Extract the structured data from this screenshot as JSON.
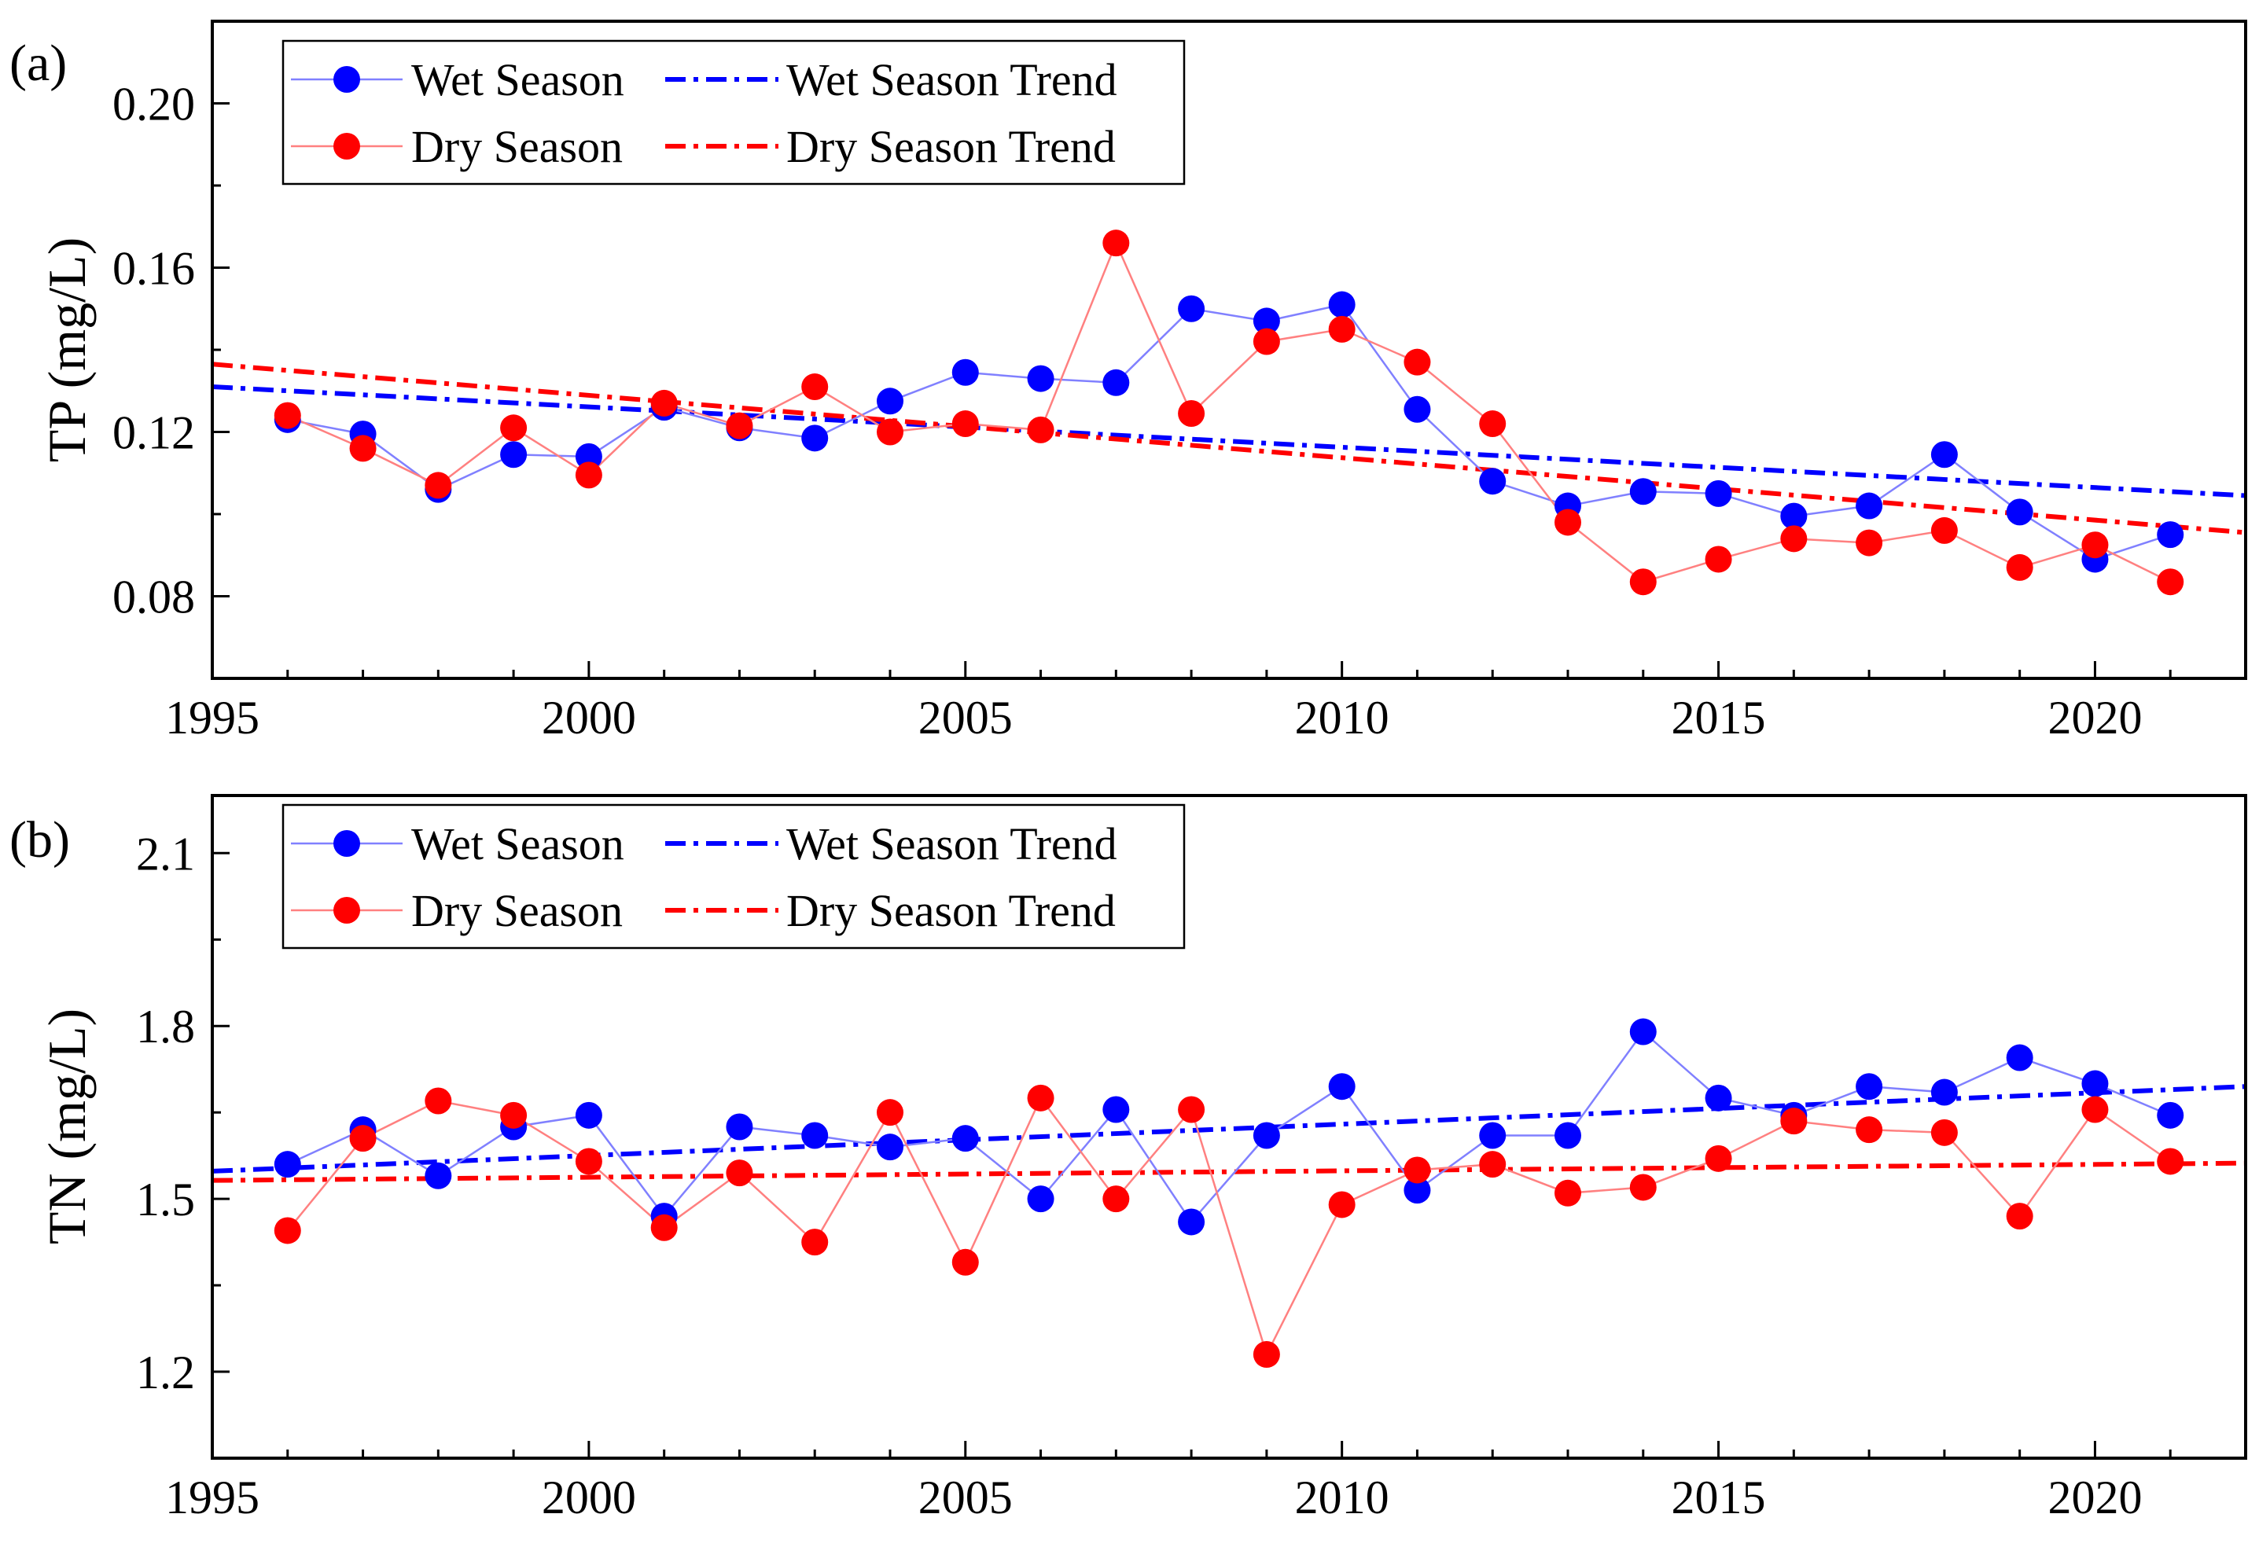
{
  "colors": {
    "wet": "#0000ff",
    "dry": "#ff0000",
    "wet_line": "#8080ff",
    "dry_line": "#ff8080",
    "axes": "#000000"
  },
  "chart_data": [
    {
      "type": "line",
      "panel_label": "(a)",
      "ylabel": "TP (mg/L)",
      "xlim": [
        1995,
        2022
      ],
      "ylim": [
        0.06,
        0.22
      ],
      "xticks": [
        1995,
        2000,
        2005,
        2010,
        2015,
        2020
      ],
      "yticks": [
        0.08,
        0.12,
        0.16,
        0.2
      ],
      "xtick_labels": [
        "1995",
        "2000",
        "2005",
        "2010",
        "2015",
        "2020"
      ],
      "ytick_labels": [
        "0.08",
        "0.12",
        "0.16",
        "0.20"
      ],
      "legend_position": "top-left",
      "x": [
        1996,
        1997,
        1998,
        1999,
        2000,
        2001,
        2002,
        2003,
        2004,
        2005,
        2006,
        2007,
        2008,
        2009,
        2010,
        2011,
        2012,
        2013,
        2014,
        2015,
        2016,
        2017,
        2018,
        2019,
        2020,
        2021
      ],
      "series": [
        {
          "name": "Wet Season",
          "key": "wet",
          "values": [
            0.123,
            0.1195,
            0.106,
            0.1145,
            0.114,
            0.126,
            0.121,
            0.1185,
            0.1275,
            0.1345,
            0.133,
            0.132,
            0.15,
            0.147,
            0.151,
            0.1255,
            0.108,
            0.102,
            0.1055,
            0.105,
            0.0995,
            0.102,
            0.1145,
            0.1005,
            0.089,
            0.095
          ]
        },
        {
          "name": "Dry Season",
          "key": "dry",
          "values": [
            0.124,
            0.116,
            0.107,
            0.121,
            0.1095,
            0.127,
            0.1215,
            0.131,
            0.12,
            0.122,
            0.1205,
            0.166,
            0.1245,
            0.142,
            0.145,
            0.137,
            0.122,
            0.098,
            0.0835,
            0.089,
            0.094,
            0.093,
            0.096,
            0.087,
            0.0925,
            0.0835
          ]
        }
      ],
      "trends": [
        {
          "name": "Wet Season Trend",
          "key": "wet",
          "x": [
            1995,
            2022
          ],
          "y": [
            0.131,
            0.1045
          ]
        },
        {
          "name": "Dry Season Trend",
          "key": "dry",
          "x": [
            1995,
            2022
          ],
          "y": [
            0.1365,
            0.0955
          ]
        }
      ]
    },
    {
      "type": "line",
      "panel_label": "(b)",
      "ylabel": "TN (mg/L)",
      "xlim": [
        1995,
        2022
      ],
      "ylim": [
        1.05,
        2.2
      ],
      "xticks": [
        1995,
        2000,
        2005,
        2010,
        2015,
        2020
      ],
      "yticks": [
        1.2,
        1.5,
        1.8,
        2.1
      ],
      "xtick_labels": [
        "1995",
        "2000",
        "2005",
        "2010",
        "2015",
        "2020"
      ],
      "ytick_labels": [
        "1.2",
        "1.5",
        "1.8",
        "2.1"
      ],
      "legend_position": "top-left",
      "x": [
        1996,
        1997,
        1998,
        1999,
        2000,
        2001,
        2002,
        2003,
        2004,
        2005,
        2006,
        2007,
        2008,
        2009,
        2010,
        2011,
        2012,
        2013,
        2014,
        2015,
        2016,
        2017,
        2018,
        2019,
        2020,
        2021
      ],
      "series": [
        {
          "name": "Wet Season",
          "key": "wet",
          "values": [
            1.56,
            1.62,
            1.54,
            1.625,
            1.645,
            1.47,
            1.625,
            1.61,
            1.59,
            1.605,
            1.5,
            1.655,
            1.46,
            1.61,
            1.695,
            1.515,
            1.61,
            1.61,
            1.79,
            1.675,
            1.645,
            1.695,
            1.685,
            1.745,
            1.7,
            1.645
          ]
        },
        {
          "name": "Dry Season",
          "key": "dry",
          "values": [
            1.445,
            1.605,
            1.67,
            1.645,
            1.565,
            1.45,
            1.545,
            1.425,
            1.65,
            1.39,
            1.675,
            1.5,
            1.655,
            1.23,
            1.49,
            1.55,
            1.56,
            1.51,
            1.52,
            1.57,
            1.635,
            1.62,
            1.615,
            1.47,
            1.655,
            1.565
          ]
        }
      ],
      "trends": [
        {
          "name": "Wet Season Trend",
          "key": "wet",
          "x": [
            1995,
            2022
          ],
          "y": [
            1.548,
            1.695
          ]
        },
        {
          "name": "Dry Season Trend",
          "key": "dry",
          "x": [
            1995,
            2022
          ],
          "y": [
            1.532,
            1.562
          ]
        }
      ]
    }
  ]
}
